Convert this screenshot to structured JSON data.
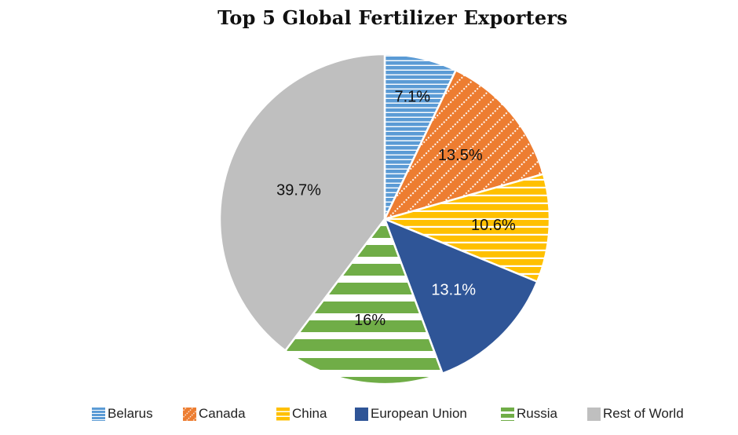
{
  "chart_data": {
    "type": "pie",
    "title": "Top 5 Global Fertilizer Exporters",
    "legend_position": "bottom",
    "slices": [
      {
        "name": "Belarus",
        "value": 7.1,
        "label": "7.1%",
        "color": "#5b9bd5",
        "pattern": "horizontal-lines"
      },
      {
        "name": "Canada",
        "value": 13.5,
        "label": "13.5%",
        "color": "#ed7d31",
        "pattern": "dotted-diagonal"
      },
      {
        "name": "China",
        "value": 10.6,
        "label": "10.6%",
        "color": "#ffc000",
        "pattern": "horizontal-lines"
      },
      {
        "name": "European Union",
        "value": 13.1,
        "label": "13.1%",
        "color": "#2f5597",
        "pattern": "solid"
      },
      {
        "name": "Russia",
        "value": 16,
        "label": "16%",
        "color": "#70ad47",
        "pattern": "wide-horizontal-bands"
      },
      {
        "name": "Rest of World",
        "value": 39.7,
        "label": "39.7%",
        "color": "#bfbfbf",
        "pattern": "solid"
      }
    ]
  }
}
